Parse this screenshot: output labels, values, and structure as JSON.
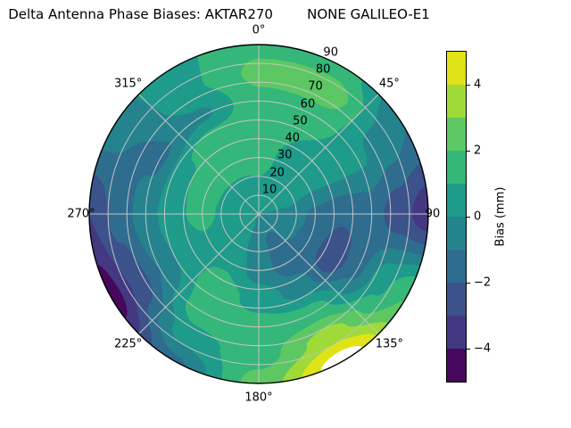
{
  "title": "Delta Antenna Phase Biases: AKTAR270        NONE GALILEO-E1",
  "chart_data": {
    "type": "heatmap",
    "projection": "polar",
    "title": "Delta Antenna Phase Biases: AKTAR270        NONE GALILEO-E1",
    "colormap": "viridis",
    "grid": true,
    "legend_position": "right-colorbar",
    "levels": [
      -5,
      -4,
      -3,
      -2,
      -1,
      0,
      1,
      2,
      3,
      4,
      5
    ],
    "band_colors": [
      "#46085c",
      "#453882",
      "#3b528b",
      "#2e6d8e",
      "#25838e",
      "#1e9b8a",
      "#35b779",
      "#5dc863",
      "#a0da39",
      "#dfe318"
    ],
    "over_range_color": "#ffffff",
    "grid_color": "#c4c4c4",
    "outline_color": "#000000",
    "azimuth_ticks": [
      {
        "angle": 0,
        "label": "0°"
      },
      {
        "angle": 45,
        "label": "45°"
      },
      {
        "angle": 90,
        "label": "90"
      },
      {
        "angle": 135,
        "label": "135°"
      },
      {
        "angle": 180,
        "label": "180°"
      },
      {
        "angle": 225,
        "label": "225°"
      },
      {
        "angle": 270,
        "label": "270°"
      },
      {
        "angle": 315,
        "label": "315°"
      }
    ],
    "radial_ticks": [
      "10",
      "20",
      "30",
      "40",
      "50",
      "60",
      "70",
      "80",
      "90"
    ],
    "radial_max": 90,
    "azimuths_deg": [
      0,
      30,
      60,
      90,
      120,
      150,
      180,
      210,
      240,
      270,
      300,
      330
    ],
    "zenith_deg": [
      0,
      15,
      30,
      45,
      60,
      75,
      90
    ],
    "bias_mm": [
      [
        0.0,
        0.8,
        1.5,
        1.6,
        1.8,
        2.2,
        1.8
      ],
      [
        0.0,
        0.5,
        0.6,
        1.0,
        1.6,
        2.6,
        1.4
      ],
      [
        0.0,
        0.4,
        0.2,
        0.3,
        0.2,
        -0.5,
        -1.0
      ],
      [
        0.0,
        -0.3,
        -1.2,
        -1.8,
        -1.6,
        -2.6,
        -3.6
      ],
      [
        0.0,
        -0.6,
        -1.4,
        -2.8,
        -1.2,
        0.8,
        2.0
      ],
      [
        0.0,
        -1.2,
        -1.5,
        -0.5,
        1.5,
        3.5,
        5.6
      ],
      [
        0.0,
        -0.8,
        -0.5,
        0.6,
        1.4,
        1.6,
        2.4
      ],
      [
        0.0,
        0.3,
        0.8,
        1.6,
        1.6,
        0.5,
        -1.2
      ],
      [
        0.0,
        0.4,
        0.8,
        0.3,
        -1.0,
        -2.8,
        -4.6
      ],
      [
        0.0,
        0.6,
        1.3,
        0.8,
        -0.5,
        -1.6,
        -3.0
      ],
      [
        0.0,
        0.6,
        1.5,
        0.8,
        -1.2,
        -1.0,
        -0.6
      ],
      [
        0.0,
        0.6,
        1.6,
        1.8,
        -0.2,
        0.8,
        0.8
      ]
    ],
    "colorbar": {
      "label": "Bias (mm)",
      "min": -5,
      "max": 5,
      "ticks": [
        {
          "value": 4,
          "label": "4"
        },
        {
          "value": 2,
          "label": "2"
        },
        {
          "value": 0,
          "label": "0"
        },
        {
          "value": -2,
          "label": "−2"
        },
        {
          "value": -4,
          "label": "−4"
        }
      ]
    }
  }
}
